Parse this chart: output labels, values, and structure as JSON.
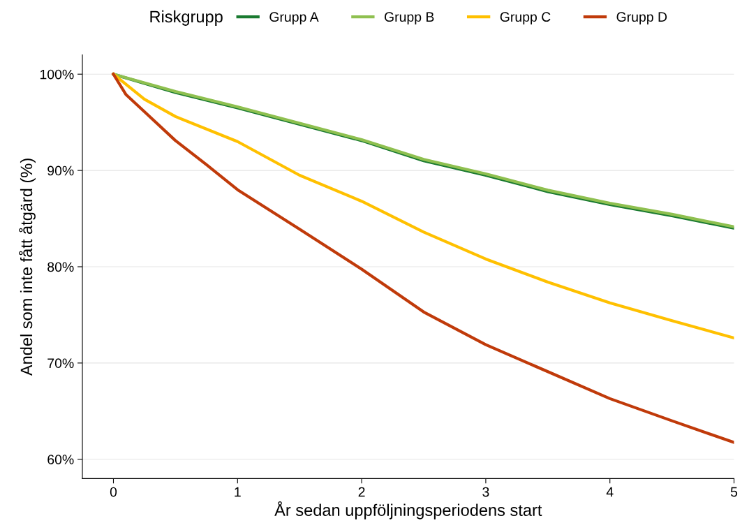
{
  "chart_data": {
    "type": "line",
    "xlabel": "År sedan uppföljningsperiodens start",
    "ylabel": "Andel som inte fått åtgärd (%)",
    "legend_title": "Riskgrupp",
    "legend": "top",
    "grid": "y",
    "line_style": "solid",
    "x": [
      0,
      0.5,
      1,
      1.5,
      2,
      2.5,
      3,
      3.5,
      4,
      4.5,
      5
    ],
    "xlim": [
      -0.25,
      5
    ],
    "xticks": [
      0,
      1,
      2,
      3,
      4,
      5
    ],
    "ylim": [
      58,
      102
    ],
    "yticks": [
      {
        "value": 60,
        "label": "60%"
      },
      {
        "value": 70,
        "label": "70%"
      },
      {
        "value": 80,
        "label": "80%"
      },
      {
        "value": 90,
        "label": "90%"
      },
      {
        "value": 100,
        "label": "100%"
      }
    ],
    "series": [
      {
        "name": "Grupp A",
        "color": "#1a7a30",
        "values": [
          100,
          98.1,
          96.5,
          94.8,
          93.1,
          91.0,
          89.5,
          87.8,
          86.45,
          85.3,
          84.0
        ]
      },
      {
        "name": "Grupp B",
        "color": "#8fc050",
        "values": [
          100,
          98.2,
          96.6,
          94.9,
          93.2,
          91.15,
          89.65,
          87.95,
          86.6,
          85.45,
          84.15
        ]
      },
      {
        "name": "Grupp C",
        "color": "#ffc000",
        "x": [
          0,
          0.25,
          0.5,
          1,
          1.5,
          2,
          2.5,
          3,
          3.5,
          4,
          4.5,
          5
        ],
        "values": [
          100,
          97.4,
          95.6,
          93.0,
          89.5,
          86.8,
          83.6,
          80.8,
          78.4,
          76.25,
          74.4,
          72.6
        ]
      },
      {
        "name": "Grupp D",
        "color": "#c03a0a",
        "x": [
          0,
          0.1,
          0.25,
          0.5,
          0.75,
          1,
          1.5,
          2,
          2.5,
          3,
          3.5,
          4,
          4.5,
          5
        ],
        "values": [
          100,
          97.9,
          96.1,
          93.1,
          90.6,
          88.0,
          83.9,
          79.75,
          75.3,
          71.9,
          69.1,
          66.3,
          64.0,
          61.75
        ]
      }
    ]
  }
}
